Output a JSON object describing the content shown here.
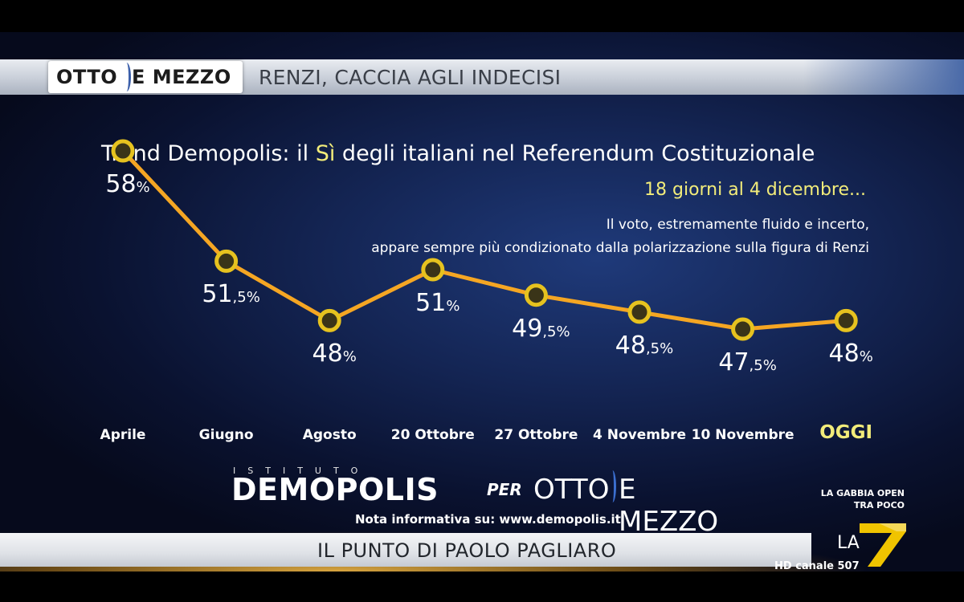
{
  "header": {
    "logo_left": "OTTO",
    "logo_right": "E MEZZO",
    "title": "RENZI, CACCIA AGLI INDECISI"
  },
  "chart_data": {
    "type": "line",
    "title_prefix": "Trend Demopolis: il ",
    "title_highlight": "Sì",
    "title_suffix": " degli italiani nel Referendum Costituzionale",
    "subtitle": "18 giorni al 4 dicembre...",
    "note_line1": "Il voto, estremamente fluido e incerto,",
    "note_line2": "appare sempre più condizionato dalla polarizzazione sulla figura di Renzi",
    "categories": [
      "Aprile",
      "Giugno",
      "Agosto",
      "20 Ottobre",
      "27 Ottobre",
      "4 Novembre",
      "10 Novembre",
      "OGGI"
    ],
    "values": [
      58,
      51.5,
      48,
      51,
      49.5,
      48.5,
      47.5,
      48
    ],
    "value_labels": [
      {
        "int": "58",
        "dec": "",
        "pct": "%"
      },
      {
        "int": "51",
        "dec": ",5",
        "pct": "%"
      },
      {
        "int": "48",
        "dec": "",
        "pct": "%"
      },
      {
        "int": "51",
        "dec": "",
        "pct": "%"
      },
      {
        "int": "49",
        "dec": ",5",
        "pct": "%"
      },
      {
        "int": "48",
        "dec": ",5",
        "pct": "%"
      },
      {
        "int": "47",
        "dec": ",5",
        "pct": "%"
      },
      {
        "int": "48",
        "dec": "",
        "pct": "%"
      }
    ],
    "line_color": "#f5a623",
    "marker_color": "#e6c21f",
    "highlight_color": "#f2ec7a",
    "grid": false
  },
  "brand": {
    "istituto": "ISTITUTO",
    "demopolis": "DEMOPOLIS",
    "per": "PER",
    "otto": "OTTO",
    "mezzo": "E MEZZO",
    "note": "Nota informativa su: www.demopolis.it"
  },
  "promo": {
    "line1": "LA GABBIA OPEN",
    "line2": "TRA POCO"
  },
  "lower_third": {
    "title": "IL PUNTO DI PAOLO PAGLIARO"
  },
  "channel": {
    "logo_text": "LA",
    "label": "HD canale 507"
  }
}
